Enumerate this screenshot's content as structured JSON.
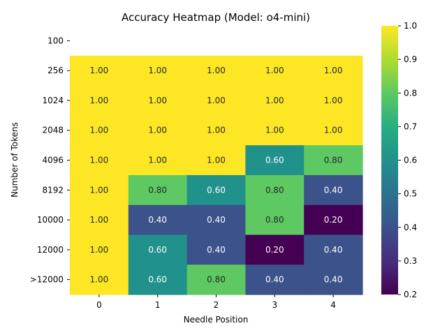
{
  "chart_data": {
    "type": "heatmap",
    "title": "Accuracy Heatmap (Model: o4-mini)",
    "xlabel": "Needle Position",
    "ylabel": "Number of Tokens",
    "x_categories": [
      "0",
      "1",
      "2",
      "3",
      "4"
    ],
    "y_categories": [
      "100",
      "256",
      "1024",
      "2048",
      "4096",
      "8192",
      "10000",
      "12000",
      ">12000"
    ],
    "values": [
      [
        null,
        null,
        null,
        null,
        null
      ],
      [
        1.0,
        1.0,
        1.0,
        1.0,
        1.0
      ],
      [
        1.0,
        1.0,
        1.0,
        1.0,
        1.0
      ],
      [
        1.0,
        1.0,
        1.0,
        1.0,
        1.0
      ],
      [
        1.0,
        1.0,
        1.0,
        0.6,
        0.8
      ],
      [
        1.0,
        0.8,
        0.6,
        0.8,
        0.4
      ],
      [
        1.0,
        0.4,
        0.4,
        0.8,
        0.2
      ],
      [
        1.0,
        0.6,
        0.4,
        0.2,
        0.4
      ],
      [
        1.0,
        0.6,
        0.8,
        0.4,
        0.4
      ]
    ],
    "colorbar": {
      "range": [
        0.2,
        1.0
      ],
      "ticks": [
        "0.2",
        "0.3",
        "0.4",
        "0.5",
        "0.6",
        "0.7",
        "0.8",
        "0.9",
        "1.0"
      ],
      "colormap": "viridis"
    },
    "grid": false,
    "legend": "none"
  }
}
